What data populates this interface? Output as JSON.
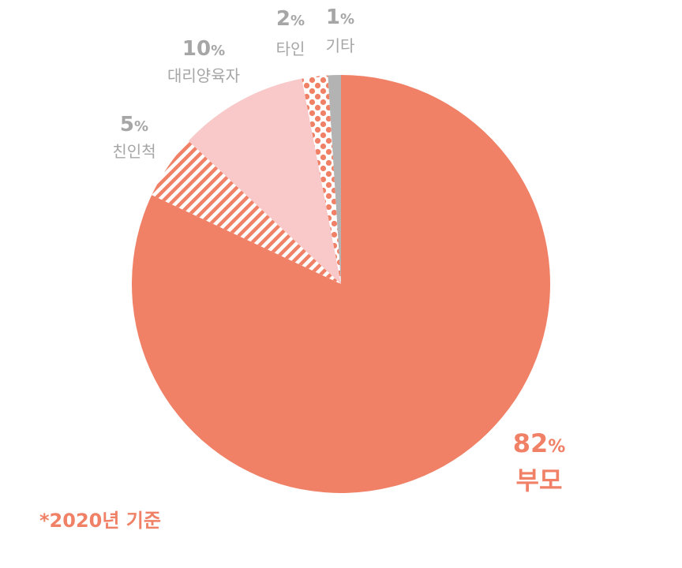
{
  "chart_data": {
    "type": "pie",
    "start": "12 o'clock",
    "direction": "clockwise",
    "slices": [
      {
        "label": "부모",
        "value": 82,
        "display": "82",
        "unit": "%",
        "color": "#f08066",
        "pattern": "solid",
        "text_color": "#f08066"
      },
      {
        "label": "친인척",
        "value": 5,
        "display": "5",
        "unit": "%",
        "color": "#f08066",
        "pattern": "stripes",
        "text_color": "#a6a6a6"
      },
      {
        "label": "대리양육자",
        "value": 10,
        "display": "10",
        "unit": "%",
        "color": "#f9c9c9",
        "pattern": "solid",
        "text_color": "#a6a6a6"
      },
      {
        "label": "타인",
        "value": 2,
        "display": "2",
        "unit": "%",
        "color": "#f08066",
        "pattern": "dots",
        "text_color": "#a6a6a6"
      },
      {
        "label": "기타",
        "value": 1,
        "display": "1",
        "unit": "%",
        "color": "#b3b3b3",
        "pattern": "solid",
        "text_color": "#a6a6a6"
      }
    ]
  },
  "footnote": "*2020년 기준"
}
